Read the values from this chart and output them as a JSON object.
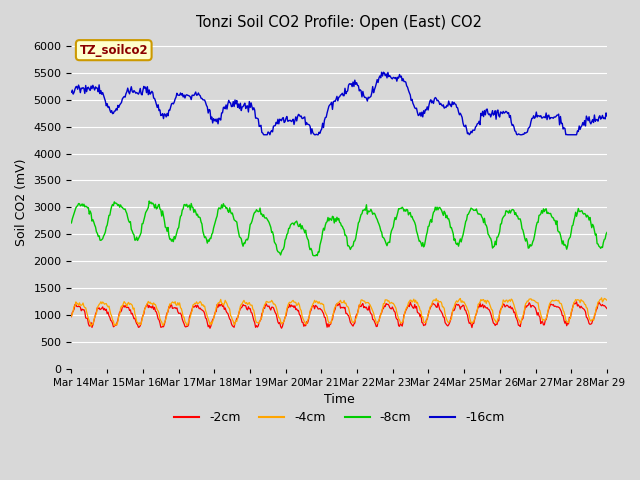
{
  "title": "Tonzi Soil CO2 Profile: Open (East) CO2",
  "xlabel": "Time",
  "ylabel": "Soil CO2 (mV)",
  "watermark": "TZ_soilco2",
  "ylim": [
    0,
    6200
  ],
  "yticks": [
    0,
    500,
    1000,
    1500,
    2000,
    2500,
    3000,
    3500,
    4000,
    4500,
    5000,
    5500,
    6000
  ],
  "background_color": "#d8d8d8",
  "plot_bg_color": "#d8d8d8",
  "series_colors": {
    "-2cm": "#ff0000",
    "-4cm": "#ffa500",
    "-8cm": "#00cc00",
    "-16cm": "#0000cc"
  },
  "n_points": 600,
  "figsize": [
    6.4,
    4.8
  ],
  "dpi": 100
}
